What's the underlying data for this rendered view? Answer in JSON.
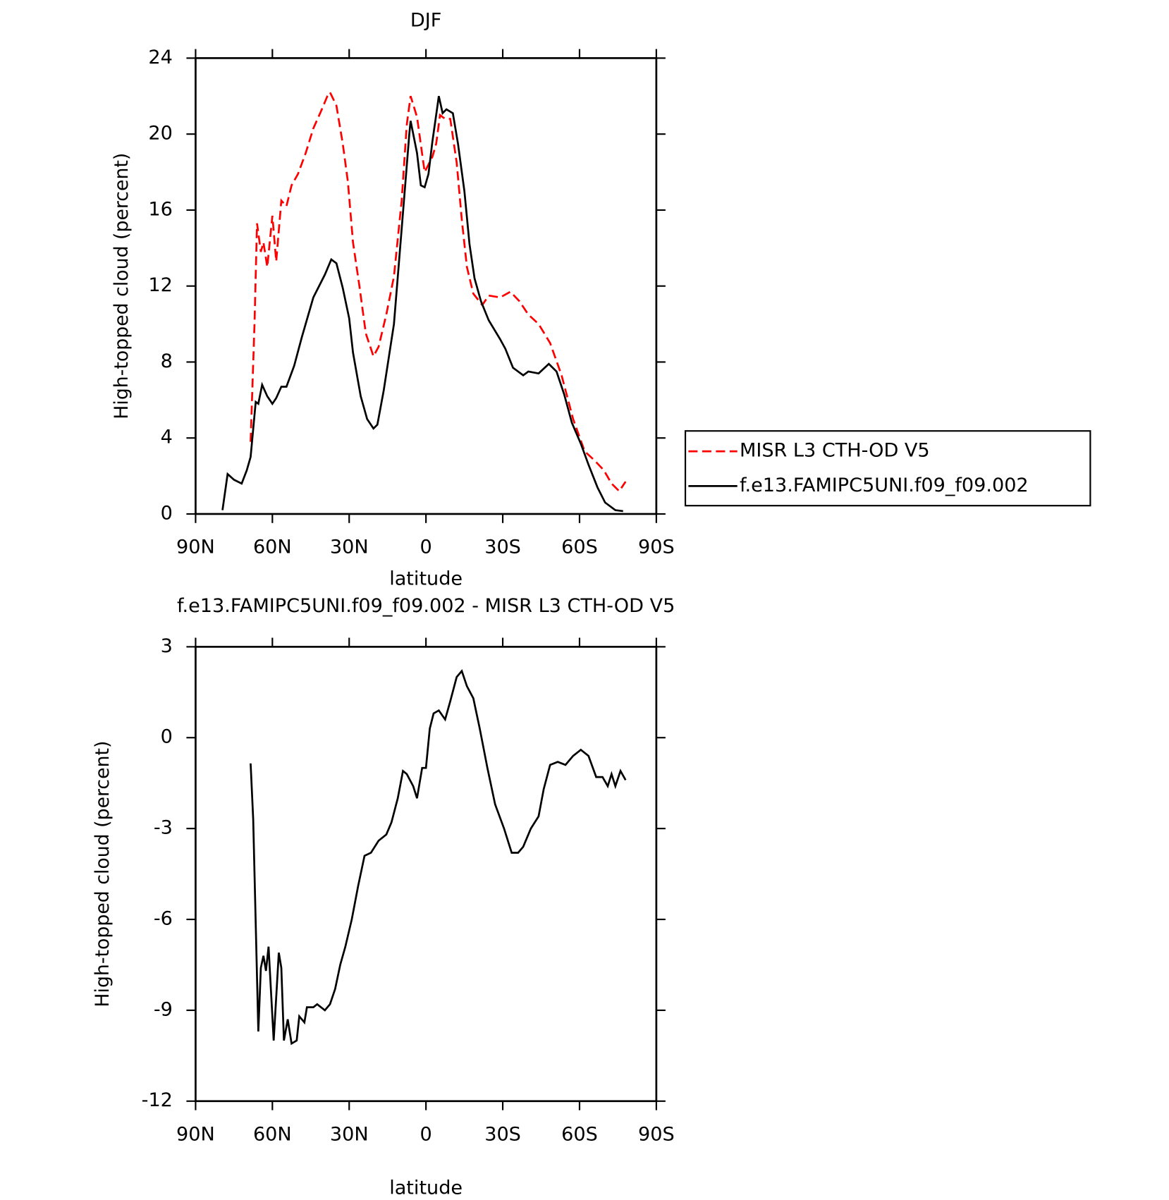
{
  "chart_data": [
    {
      "type": "line",
      "title": "DJF",
      "xlabel": "latitude",
      "ylabel": "High-topped cloud (percent)",
      "xlim": [
        90,
        -90
      ],
      "xticks": [
        {
          "value": 90,
          "label": "90N"
        },
        {
          "value": 60,
          "label": "60N"
        },
        {
          "value": 30,
          "label": "30N"
        },
        0,
        {
          "value": -30,
          "label": "30S"
        },
        {
          "value": -60,
          "label": "60S"
        },
        {
          "value": -90,
          "label": "90S"
        }
      ],
      "ylim": [
        0,
        24
      ],
      "yticks": [
        0,
        4,
        8,
        12,
        16,
        20,
        24
      ],
      "legend": "right",
      "series": [
        {
          "name": "MISR L3 CTH-OD V5",
          "color": "#ff0000",
          "dash": true,
          "x": [
            68.5,
            67,
            66,
            64.5,
            63.5,
            62,
            60,
            58.5,
            56.5,
            54.5,
            52.5,
            50,
            47,
            44,
            41,
            38.5,
            37.5,
            35,
            32.5,
            30.5,
            28.5,
            26,
            23.5,
            20.5,
            18.5,
            15.5,
            12.5,
            9.5,
            7.5,
            6,
            3.5,
            0.5,
            -2.5,
            -4,
            -5.5,
            -7.5,
            -9.5,
            -12,
            -14,
            -16,
            -18.5,
            -22,
            -24.5,
            -29,
            -33,
            -36.5,
            -40,
            -44,
            -48.5,
            -53,
            -57.5,
            -62,
            -66,
            -69.5,
            -72.5,
            -75.5,
            -78
          ],
          "values": [
            3.8,
            10.0,
            15.3,
            13.8,
            14.3,
            13.0,
            15.7,
            13.3,
            16.5,
            16.2,
            17.3,
            17.9,
            19.0,
            20.3,
            21.2,
            22.0,
            22.2,
            21.5,
            19.5,
            17.5,
            14.3,
            12.0,
            9.5,
            8.3,
            8.8,
            10.5,
            12.5,
            16.5,
            20.5,
            22.0,
            20.9,
            18.0,
            18.8,
            19.5,
            21.0,
            20.8,
            20.8,
            18.5,
            15.5,
            13.0,
            11.6,
            11.0,
            11.5,
            11.4,
            11.7,
            11.2,
            10.5,
            10.0,
            9.0,
            7.3,
            5.0,
            3.3,
            2.8,
            2.3,
            1.6,
            1.2,
            1.7
          ]
        },
        {
          "name": "f.e13.FAMIPC5UNI.f09_f09.002",
          "color": "#000000",
          "dash": false,
          "x": [
            79.5,
            77.5,
            75,
            72,
            70,
            68.5,
            66.5,
            65.5,
            64,
            62,
            60,
            58.5,
            56.5,
            54.5,
            51.5,
            48.5,
            44,
            39.5,
            37,
            35,
            32.5,
            30,
            28.5,
            25.5,
            23,
            20.5,
            19,
            16.5,
            12.5,
            9.5,
            6.5,
            6,
            3.5,
            2,
            0.5,
            -1,
            -2.5,
            -4.5,
            -5,
            -6.5,
            -8,
            -10.5,
            -12.5,
            -15,
            -17,
            -19,
            -21.5,
            -24.5,
            -29,
            -31,
            -34,
            -38,
            -40,
            -44,
            -48,
            -51,
            -54,
            -57,
            -60.5,
            -63.5,
            -67,
            -70,
            -74,
            -77
          ],
          "values": [
            0.2,
            2.1,
            1.8,
            1.6,
            2.3,
            3.0,
            5.9,
            5.8,
            6.8,
            6.2,
            5.8,
            6.1,
            6.7,
            6.7,
            7.8,
            9.3,
            11.4,
            12.6,
            13.4,
            13.2,
            11.9,
            10.3,
            8.5,
            6.2,
            5.0,
            4.5,
            4.7,
            6.5,
            10.0,
            15.0,
            20.0,
            20.7,
            19.0,
            17.3,
            17.2,
            17.9,
            19.6,
            21.5,
            22.0,
            21.1,
            21.3,
            21.1,
            19.5,
            17.0,
            14.2,
            12.4,
            11.2,
            10.2,
            9.2,
            8.7,
            7.7,
            7.3,
            7.5,
            7.4,
            7.9,
            7.5,
            6.3,
            4.8,
            3.7,
            2.6,
            1.4,
            0.6,
            0.2,
            0.15
          ]
        }
      ]
    },
    {
      "type": "line",
      "title": "f.e13.FAMIPC5UNI.f09_f09.002 - MISR L3 CTH-OD V5",
      "xlabel": "latitude",
      "ylabel": "High-topped cloud (percent)",
      "xlim": [
        90,
        -90
      ],
      "xticks": [
        {
          "value": 90,
          "label": "90N"
        },
        {
          "value": 60,
          "label": "60N"
        },
        {
          "value": 30,
          "label": "30N"
        },
        0,
        {
          "value": -30,
          "label": "30S"
        },
        {
          "value": -60,
          "label": "60S"
        },
        {
          "value": -90,
          "label": "90S"
        }
      ],
      "ylim": [
        -12,
        3
      ],
      "yticks": [
        -12,
        -9,
        -6,
        -3,
        0,
        3
      ],
      "series": [
        {
          "color": "#000000",
          "dash": false,
          "x": [
            68.5,
            67.5,
            65.5,
            64.5,
            63.5,
            62.5,
            61.5,
            59.5,
            57.5,
            56.5,
            55.5,
            54,
            52.5,
            50.5,
            49.5,
            47.5,
            46.5,
            44,
            42.5,
            39.5,
            37.5,
            35.5,
            33.5,
            31.5,
            29,
            26.5,
            24,
            21.5,
            18.5,
            15.5,
            13.5,
            11,
            9,
            7.5,
            5,
            3.5,
            1.5,
            0,
            -1.5,
            -3,
            -5,
            -7.5,
            -9.5,
            -12,
            -14,
            -16,
            -18.5,
            -21,
            -24,
            -27,
            -30.5,
            -33.5,
            -36,
            -38,
            -41,
            -44,
            -46,
            -48.5,
            -51.5,
            -54.5,
            -57.5,
            -60.5,
            -63.5,
            -66.5,
            -69,
            -71,
            -72.5,
            -74,
            -76,
            -78
          ],
          "values": [
            -0.85,
            -2.7,
            -9.7,
            -7.6,
            -7.2,
            -7.7,
            -6.9,
            -10.0,
            -7.1,
            -7.6,
            -10.0,
            -9.3,
            -10.1,
            -10.0,
            -9.2,
            -9.4,
            -8.9,
            -8.9,
            -8.8,
            -9.0,
            -8.8,
            -8.3,
            -7.5,
            -6.9,
            -6.0,
            -4.9,
            -3.9,
            -3.8,
            -3.4,
            -3.2,
            -2.8,
            -2.0,
            -1.1,
            -1.2,
            -1.6,
            -2.0,
            -1.0,
            -1.0,
            0.3,
            0.8,
            0.9,
            0.6,
            1.2,
            2.0,
            2.2,
            1.7,
            1.3,
            0.3,
            -1.0,
            -2.2,
            -3.0,
            -3.8,
            -3.8,
            -3.6,
            -3.0,
            -2.6,
            -1.7,
            -0.9,
            -0.8,
            -0.9,
            -0.6,
            -0.4,
            -0.6,
            -1.3,
            -1.3,
            -1.6,
            -1.2,
            -1.6,
            -1.1,
            -1.4
          ]
        }
      ]
    }
  ]
}
